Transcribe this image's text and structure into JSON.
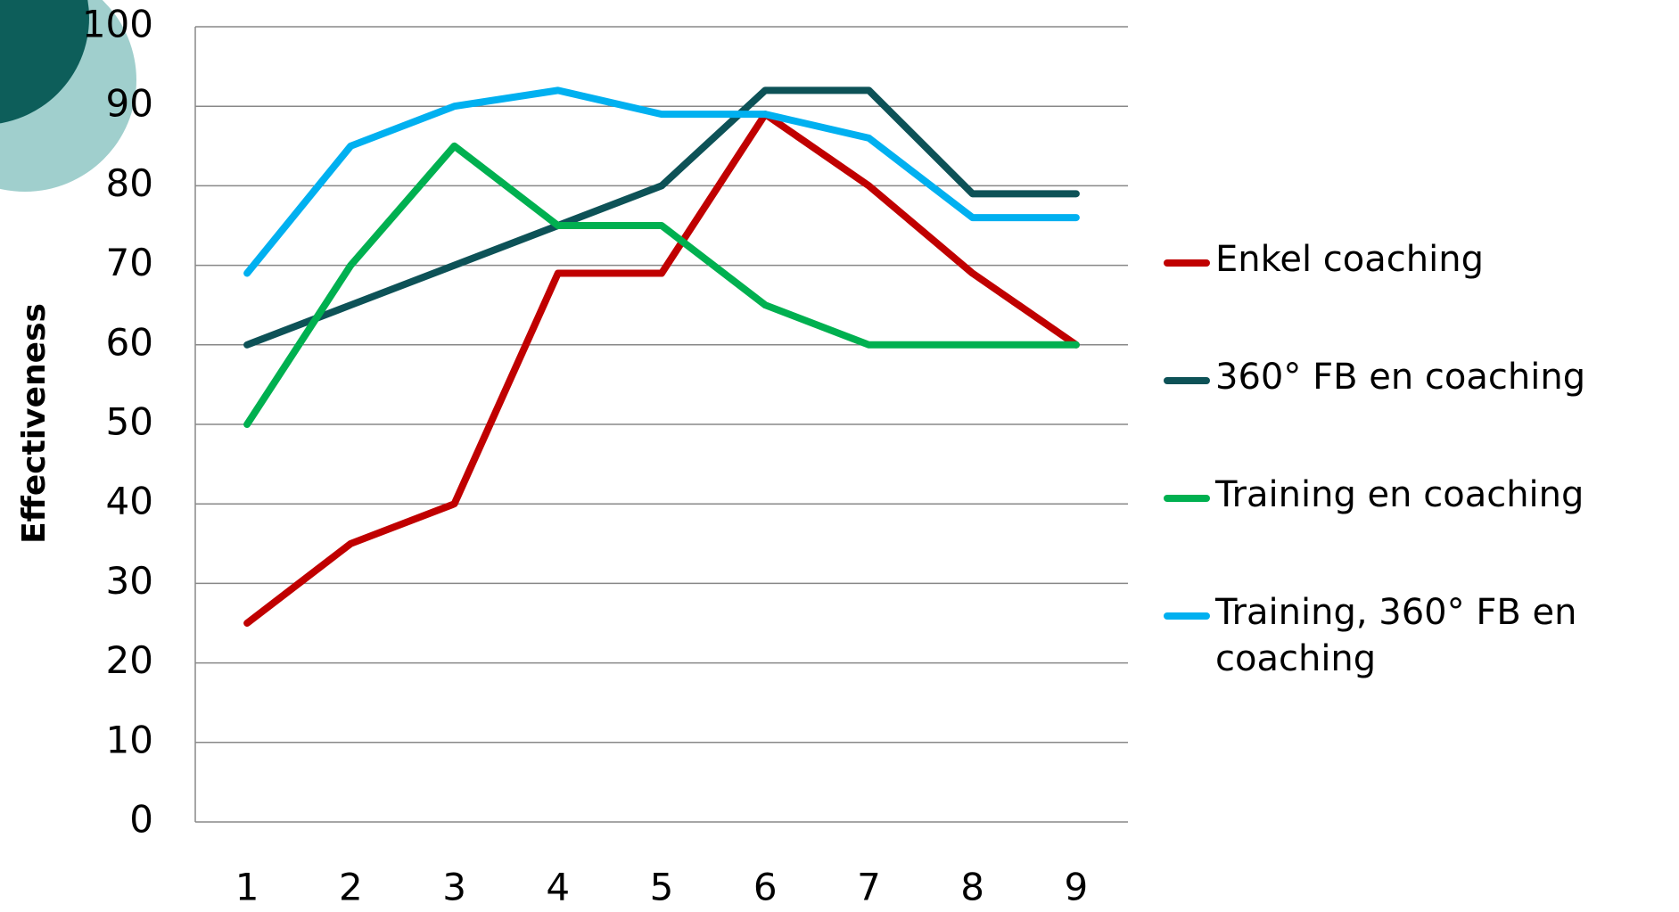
{
  "chart_data": {
    "type": "line",
    "y_label": "Effectiveness",
    "categories": [
      "1",
      "2",
      "3",
      "4",
      "5",
      "6",
      "7",
      "8",
      "9"
    ],
    "series": [
      {
        "name": "Enkel coaching",
        "color": "#c00000",
        "values": [
          25,
          35,
          40,
          69,
          69,
          89,
          80,
          69,
          60
        ]
      },
      {
        "name": "360° FB en coaching",
        "color": "#0d5257",
        "values": [
          60,
          65,
          70,
          75,
          80,
          92,
          92,
          79,
          79
        ]
      },
      {
        "name": "Training en coaching",
        "color": "#00b050",
        "values": [
          50,
          70,
          85,
          75,
          75,
          65,
          60,
          60,
          60
        ]
      },
      {
        "name": "Training, 360° FB en coaching",
        "color": "#00b0f0",
        "values": [
          69,
          85,
          90,
          92,
          89,
          89,
          86,
          76,
          76
        ]
      }
    ],
    "ylim": [
      0,
      100
    ],
    "yticks": [
      0,
      10,
      20,
      30,
      40,
      50,
      60,
      70,
      80,
      90,
      100
    ],
    "grid": true,
    "legend": "right"
  }
}
